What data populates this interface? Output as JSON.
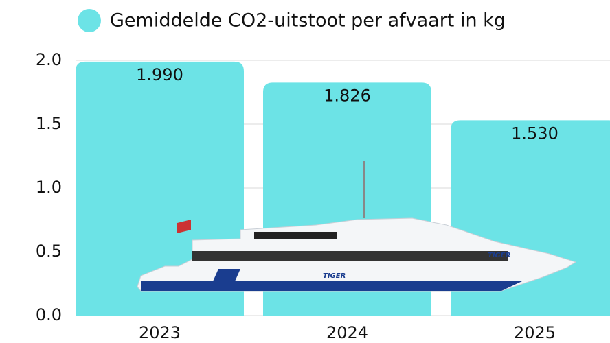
{
  "chart_data": {
    "type": "bar",
    "series": [
      {
        "name": "Gemiddelde CO2-uitstoot per afvaart in kg",
        "color": "#6ce3e6",
        "values": [
          1.99,
          1.826,
          1.53
        ],
        "value_labels": [
          "1.990",
          "1.826",
          "1.530"
        ]
      }
    ],
    "categories": [
      "2023",
      "2024",
      "2025"
    ],
    "ylim": [
      0,
      2
    ],
    "yticks": [
      {
        "value": 0,
        "label": "0.0"
      },
      {
        "value": 0.5,
        "label": "0.5"
      },
      {
        "value": 1,
        "label": "1.0"
      },
      {
        "value": 1.5,
        "label": "1.5"
      },
      {
        "value": 2,
        "label": "2.0"
      }
    ],
    "grid": true,
    "legend": "top",
    "image_text": "TIGER"
  }
}
